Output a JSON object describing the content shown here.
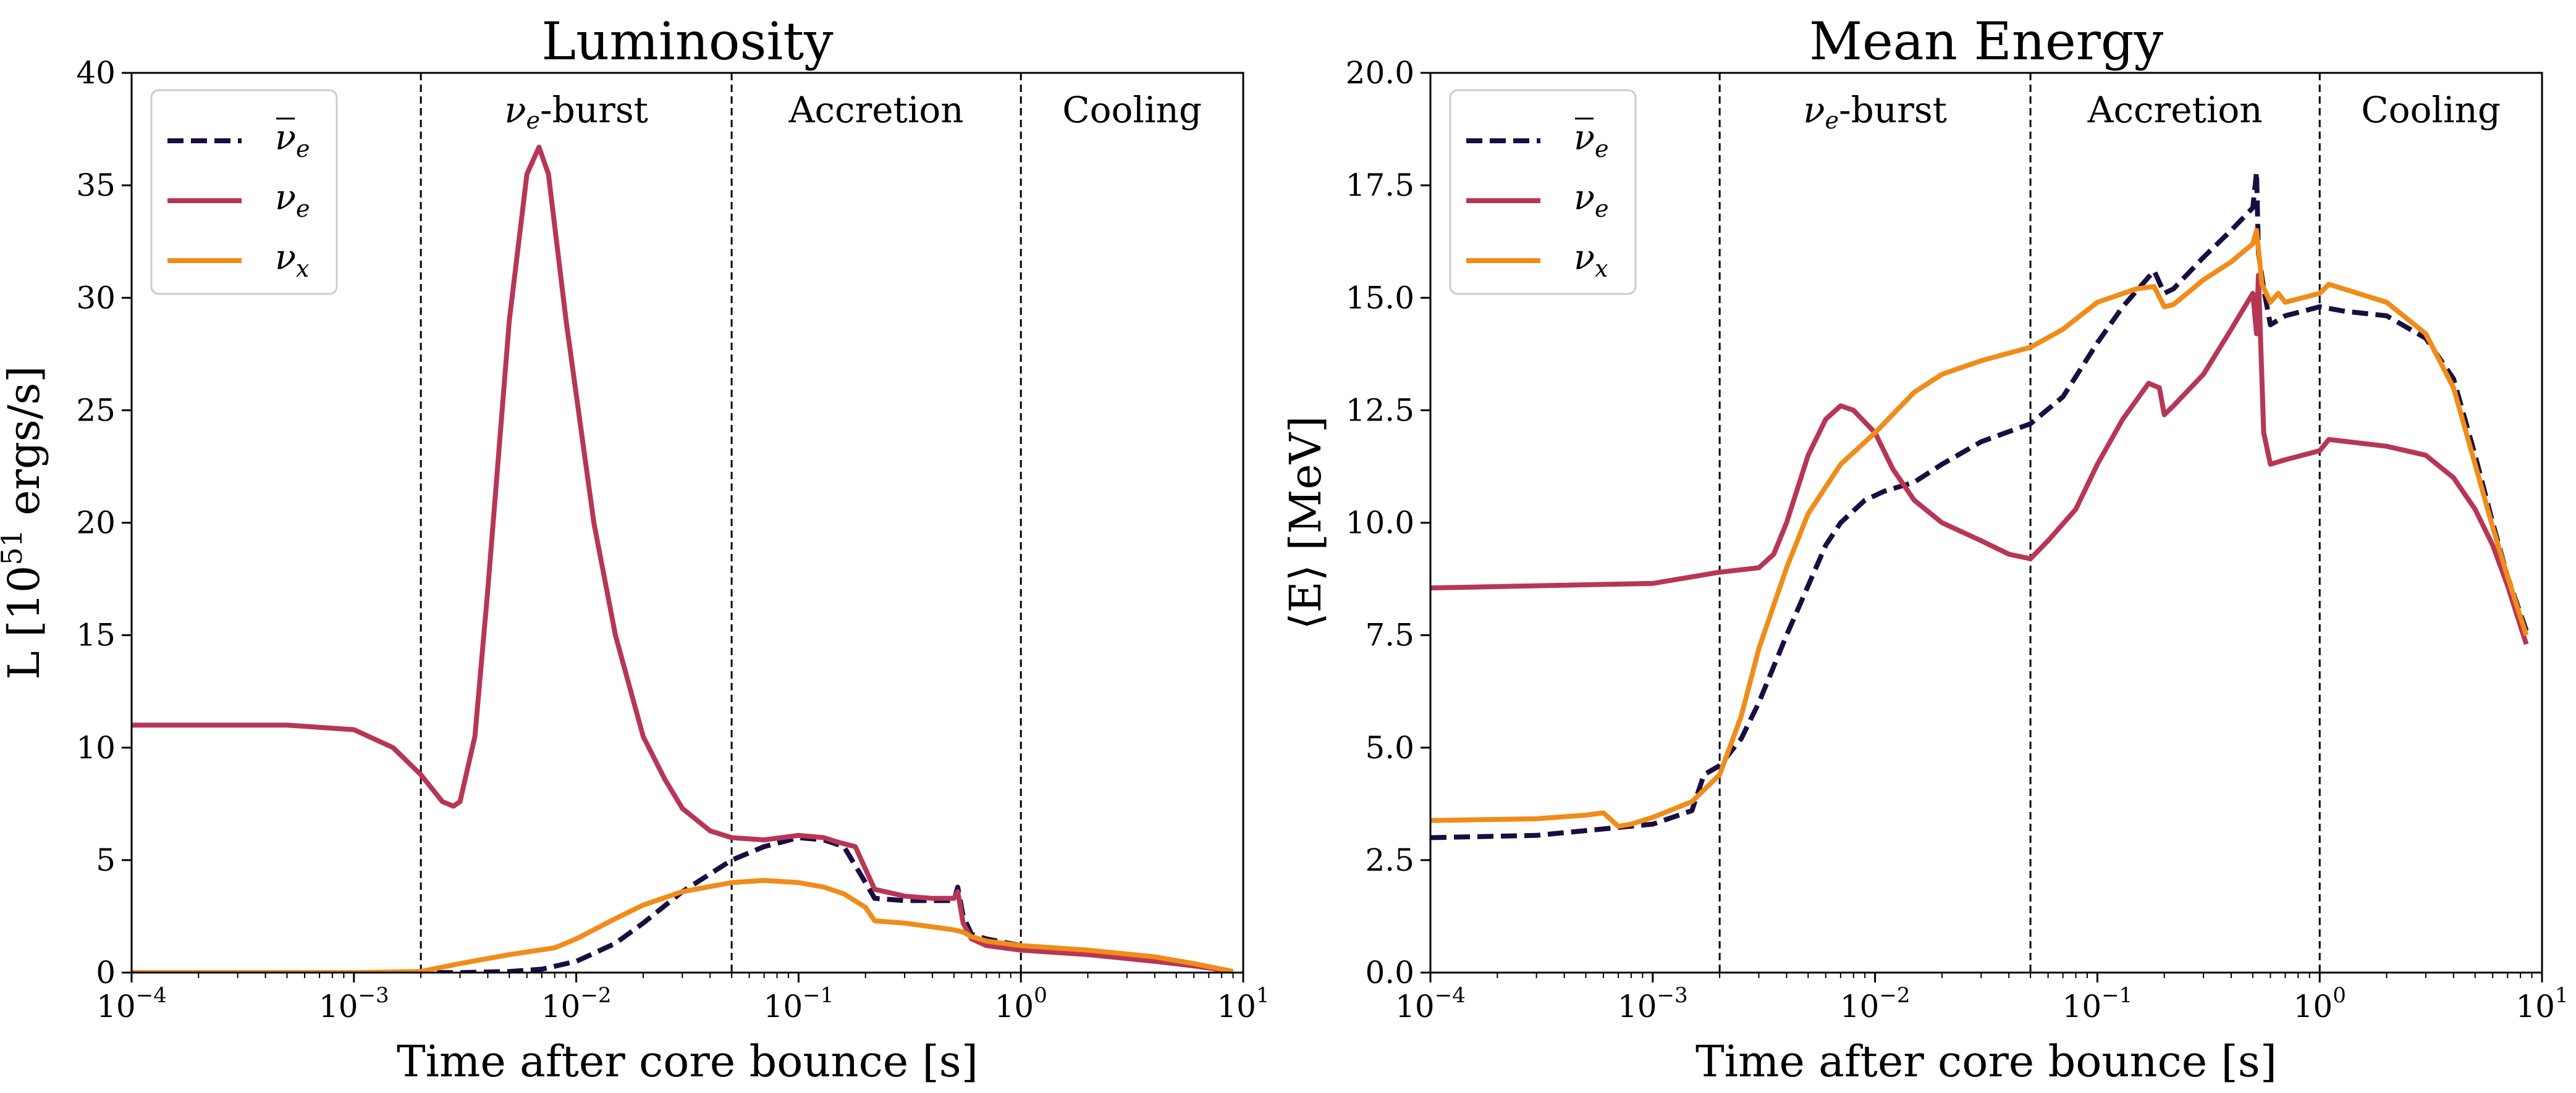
{
  "chart_data": [
    {
      "type": "line",
      "title": "Luminosity",
      "xlabel": "Time after core bounce [s]",
      "ylabel": "L [10^51 ergs/s]",
      "ylabel_parts": {
        "base": "L [10",
        "exp": "51",
        "rest": " ergs/s]"
      },
      "xscale": "log",
      "xlim": [
        0.0001,
        10
      ],
      "ylim": [
        0,
        40
      ],
      "xticks": [
        {
          "value": 0.0001,
          "base": "10",
          "exp": "−4"
        },
        {
          "value": 0.001,
          "base": "10",
          "exp": "−3"
        },
        {
          "value": 0.01,
          "base": "10",
          "exp": "−2"
        },
        {
          "value": 0.1,
          "base": "10",
          "exp": "−1"
        },
        {
          "value": 1,
          "base": "10",
          "exp": "0"
        },
        {
          "value": 10,
          "base": "10",
          "exp": "1"
        }
      ],
      "yticks": [
        {
          "value": 0,
          "label": "0"
        },
        {
          "value": 5,
          "label": "5"
        },
        {
          "value": 10,
          "label": "10"
        },
        {
          "value": 15,
          "label": "15"
        },
        {
          "value": 20,
          "label": "20"
        },
        {
          "value": 25,
          "label": "25"
        },
        {
          "value": 30,
          "label": "30"
        },
        {
          "value": 35,
          "label": "35"
        },
        {
          "value": 40,
          "label": "40"
        }
      ],
      "grid": false,
      "legend": "top-left",
      "phase_lines": [
        0.002,
        0.05,
        1.0
      ],
      "phases": [
        {
          "label": "νe-burst",
          "base": "ν",
          "sub": "e",
          "rest": "-burst",
          "x_from": 0.002,
          "x_to": 0.05
        },
        {
          "label": "Accretion",
          "base": "Accretion",
          "sub": "",
          "rest": "",
          "x_from": 0.05,
          "x_to": 1.0
        },
        {
          "label": "Cooling",
          "base": "Cooling",
          "sub": "",
          "rest": "",
          "x_from": 1.0,
          "x_to": 10
        }
      ],
      "series": [
        {
          "name": "ν̄e",
          "legend_base": "ν",
          "legend_sub": "e",
          "legend_bar": true,
          "color": "#1b0c41",
          "dash": "dashed",
          "x": [
            0.0001,
            0.001,
            0.003,
            0.005,
            0.007,
            0.01,
            0.015,
            0.02,
            0.03,
            0.05,
            0.07,
            0.1,
            0.13,
            0.16,
            0.2,
            0.22,
            0.3,
            0.4,
            0.5,
            0.52,
            0.55,
            0.6,
            0.7,
            1.0,
            2,
            4,
            6,
            9
          ],
          "y": [
            0.0,
            0.0,
            0.0,
            0.05,
            0.15,
            0.5,
            1.3,
            2.2,
            3.6,
            5.0,
            5.6,
            6.0,
            5.9,
            5.6,
            4.0,
            3.3,
            3.2,
            3.2,
            3.2,
            3.8,
            2.5,
            1.7,
            1.5,
            1.2,
            0.9,
            0.6,
            0.3,
            0.05
          ]
        },
        {
          "name": "νe",
          "legend_base": "ν",
          "legend_sub": "e",
          "legend_bar": false,
          "color": "#b83655",
          "dash": "solid",
          "x": [
            0.0001,
            0.0005,
            0.001,
            0.0015,
            0.002,
            0.0025,
            0.0028,
            0.003,
            0.0035,
            0.004,
            0.005,
            0.006,
            0.0068,
            0.0075,
            0.009,
            0.012,
            0.015,
            0.02,
            0.025,
            0.03,
            0.04,
            0.05,
            0.07,
            0.1,
            0.13,
            0.15,
            0.18,
            0.2,
            0.22,
            0.3,
            0.4,
            0.5,
            0.52,
            0.55,
            0.6,
            0.7,
            1.0,
            2,
            4,
            6,
            9
          ],
          "y": [
            11.0,
            11.0,
            10.8,
            10.0,
            8.8,
            7.6,
            7.4,
            7.6,
            10.5,
            17.0,
            29.0,
            35.5,
            36.7,
            35.5,
            29.0,
            20.0,
            15.0,
            10.5,
            8.6,
            7.3,
            6.3,
            6.0,
            5.9,
            6.1,
            6.0,
            5.8,
            5.6,
            4.6,
            3.7,
            3.4,
            3.3,
            3.3,
            3.6,
            2.2,
            1.5,
            1.2,
            1.0,
            0.8,
            0.5,
            0.3,
            0.05
          ]
        },
        {
          "name": "νx",
          "legend_base": "ν",
          "legend_sub": "x",
          "legend_bar": false,
          "color": "#f08c1a",
          "dash": "solid",
          "x": [
            0.0001,
            0.001,
            0.002,
            0.003,
            0.005,
            0.008,
            0.01,
            0.015,
            0.02,
            0.03,
            0.05,
            0.07,
            0.1,
            0.13,
            0.16,
            0.2,
            0.22,
            0.3,
            0.5,
            0.55,
            0.6,
            0.7,
            1.0,
            2,
            4,
            6,
            9
          ],
          "y": [
            0.0,
            0.0,
            0.05,
            0.4,
            0.8,
            1.1,
            1.5,
            2.4,
            3.0,
            3.6,
            4.0,
            4.1,
            4.0,
            3.8,
            3.5,
            2.9,
            2.3,
            2.2,
            1.9,
            1.8,
            1.6,
            1.4,
            1.2,
            1.0,
            0.7,
            0.4,
            0.05
          ]
        }
      ]
    },
    {
      "type": "line",
      "title": "Mean Energy",
      "xlabel": "Time after core bounce [s]",
      "ylabel": "⟨E⟩ [MeV]",
      "ylabel_parts": {
        "base": "⟨E⟩ [MeV]",
        "exp": "",
        "rest": ""
      },
      "xscale": "log",
      "xlim": [
        0.0001,
        10
      ],
      "ylim": [
        0,
        20
      ],
      "xticks": [
        {
          "value": 0.0001,
          "base": "10",
          "exp": "−4"
        },
        {
          "value": 0.001,
          "base": "10",
          "exp": "−3"
        },
        {
          "value": 0.01,
          "base": "10",
          "exp": "−2"
        },
        {
          "value": 0.1,
          "base": "10",
          "exp": "−1"
        },
        {
          "value": 1,
          "base": "10",
          "exp": "0"
        },
        {
          "value": 10,
          "base": "10",
          "exp": "1"
        }
      ],
      "yticks": [
        {
          "value": 0,
          "label": "0.0"
        },
        {
          "value": 2.5,
          "label": "2.5"
        },
        {
          "value": 5,
          "label": "5.0"
        },
        {
          "value": 7.5,
          "label": "7.5"
        },
        {
          "value": 10,
          "label": "10.0"
        },
        {
          "value": 12.5,
          "label": "12.5"
        },
        {
          "value": 15,
          "label": "15.0"
        },
        {
          "value": 17.5,
          "label": "17.5"
        },
        {
          "value": 20,
          "label": "20.0"
        }
      ],
      "grid": false,
      "legend": "top-left",
      "phase_lines": [
        0.002,
        0.05,
        1.0
      ],
      "phases": [
        {
          "label": "νe-burst",
          "base": "ν",
          "sub": "e",
          "rest": "-burst",
          "x_from": 0.002,
          "x_to": 0.05
        },
        {
          "label": "Accretion",
          "base": "Accretion",
          "sub": "",
          "rest": "",
          "x_from": 0.05,
          "x_to": 1.0
        },
        {
          "label": "Cooling",
          "base": "Cooling",
          "sub": "",
          "rest": "",
          "x_from": 1.0,
          "x_to": 10
        }
      ],
      "series": [
        {
          "name": "ν̄e",
          "legend_base": "ν",
          "legend_sub": "e",
          "legend_bar": true,
          "color": "#1b0c41",
          "dash": "dashed",
          "x": [
            0.0001,
            0.0003,
            0.001,
            0.0015,
            0.0017,
            0.002,
            0.0025,
            0.003,
            0.004,
            0.005,
            0.006,
            0.007,
            0.009,
            0.011,
            0.015,
            0.02,
            0.03,
            0.05,
            0.07,
            0.1,
            0.13,
            0.18,
            0.2,
            0.22,
            0.3,
            0.4,
            0.5,
            0.52,
            0.53,
            0.56,
            0.6,
            0.7,
            1.0,
            1.3,
            2,
            3,
            4,
            5,
            6,
            7,
            8.5
          ],
          "y": [
            3.0,
            3.05,
            3.3,
            3.6,
            4.4,
            4.6,
            5.2,
            6.0,
            7.5,
            8.6,
            9.5,
            10.0,
            10.5,
            10.7,
            10.9,
            11.3,
            11.8,
            12.2,
            12.8,
            14.0,
            14.8,
            15.6,
            15.1,
            15.2,
            15.9,
            16.5,
            17.0,
            17.8,
            16.0,
            15.2,
            14.4,
            14.6,
            14.8,
            14.7,
            14.6,
            14.1,
            13.2,
            11.5,
            10.0,
            8.8,
            7.6
          ]
        },
        {
          "name": "νe",
          "legend_base": "ν",
          "legend_sub": "e",
          "legend_bar": false,
          "color": "#b83655",
          "dash": "solid",
          "x": [
            0.0001,
            0.001,
            0.002,
            0.003,
            0.0035,
            0.004,
            0.005,
            0.006,
            0.007,
            0.008,
            0.01,
            0.012,
            0.015,
            0.02,
            0.03,
            0.04,
            0.05,
            0.06,
            0.08,
            0.1,
            0.13,
            0.17,
            0.19,
            0.2,
            0.22,
            0.3,
            0.4,
            0.5,
            0.52,
            0.53,
            0.56,
            0.6,
            0.7,
            1.0,
            1.1,
            2,
            3,
            4,
            5,
            6,
            7,
            8.5
          ],
          "y": [
            8.55,
            8.65,
            8.9,
            9.0,
            9.3,
            10.0,
            11.5,
            12.3,
            12.6,
            12.5,
            12.0,
            11.2,
            10.5,
            10.0,
            9.6,
            9.3,
            9.2,
            9.6,
            10.3,
            11.3,
            12.3,
            13.1,
            13.0,
            12.4,
            12.6,
            13.3,
            14.3,
            15.1,
            14.2,
            15.5,
            12.0,
            11.3,
            11.4,
            11.6,
            11.85,
            11.7,
            11.5,
            11.0,
            10.3,
            9.5,
            8.6,
            7.3
          ]
        },
        {
          "name": "νx",
          "legend_base": "ν",
          "legend_sub": "x",
          "legend_bar": false,
          "color": "#f08c1a",
          "dash": "solid",
          "x": [
            0.0001,
            0.0003,
            0.0005,
            0.0006,
            0.0007,
            0.0008,
            0.001,
            0.0015,
            0.002,
            0.0025,
            0.003,
            0.004,
            0.005,
            0.007,
            0.01,
            0.015,
            0.02,
            0.03,
            0.05,
            0.07,
            0.1,
            0.15,
            0.18,
            0.2,
            0.22,
            0.3,
            0.4,
            0.5,
            0.52,
            0.55,
            0.6,
            0.65,
            0.7,
            1.0,
            1.1,
            2,
            3,
            4,
            5,
            6,
            7,
            8.5
          ],
          "y": [
            3.38,
            3.42,
            3.5,
            3.55,
            3.25,
            3.3,
            3.45,
            3.8,
            4.4,
            5.7,
            7.2,
            9.0,
            10.2,
            11.3,
            12.0,
            12.9,
            13.3,
            13.6,
            13.9,
            14.3,
            14.9,
            15.2,
            15.25,
            14.8,
            14.85,
            15.4,
            15.8,
            16.2,
            16.5,
            15.3,
            14.9,
            15.1,
            14.9,
            15.1,
            15.3,
            14.9,
            14.2,
            13.0,
            11.3,
            9.9,
            8.8,
            7.5
          ]
        }
      ]
    }
  ]
}
